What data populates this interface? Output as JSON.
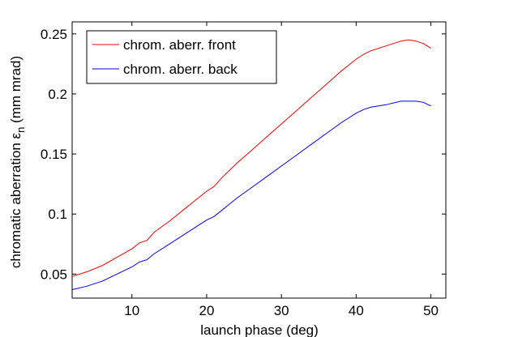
{
  "chart_data": {
    "type": "line",
    "title": "",
    "xlabel": "launch phase (deg)",
    "ylabel_main": "chromatic aberration ε",
    "ylabel_sub": "n",
    "ylabel_unit": "(mm mrad)",
    "xlim": [
      2,
      52
    ],
    "ylim": [
      0.03,
      0.26
    ],
    "xticks": [
      10,
      20,
      30,
      40,
      50
    ],
    "xtick_labels": [
      "10",
      "20",
      "30",
      "40",
      "50"
    ],
    "yticks": [
      0.05,
      0.1,
      0.15,
      0.2,
      0.25
    ],
    "ytick_labels": [
      "0.05",
      "0.1",
      "0.15",
      "0.2",
      "0.25"
    ],
    "grid": false,
    "legend_position": "top-left",
    "series": [
      {
        "name": "chrom. aberr. front",
        "color": "#ff0000",
        "x": [
          2,
          4,
          6,
          8,
          10,
          11,
          12,
          13,
          15,
          17,
          19,
          20,
          21,
          22,
          24,
          26,
          28,
          30,
          32,
          34,
          36,
          38,
          40,
          41,
          42,
          44,
          46,
          47,
          48,
          49,
          50
        ],
        "y": [
          0.048,
          0.052,
          0.057,
          0.064,
          0.071,
          0.076,
          0.078,
          0.085,
          0.094,
          0.104,
          0.114,
          0.119,
          0.123,
          0.13,
          0.142,
          0.153,
          0.164,
          0.175,
          0.186,
          0.197,
          0.208,
          0.219,
          0.229,
          0.233,
          0.236,
          0.24,
          0.244,
          0.245,
          0.244,
          0.242,
          0.238
        ]
      },
      {
        "name": "chrom. aberr. back",
        "color": "#0000ff",
        "x": [
          2,
          4,
          6,
          8,
          10,
          11,
          12,
          13,
          15,
          17,
          19,
          20,
          21,
          22,
          24,
          26,
          28,
          30,
          32,
          34,
          36,
          38,
          40,
          41,
          42,
          44,
          46,
          47,
          48,
          49,
          50
        ],
        "y": [
          0.037,
          0.04,
          0.044,
          0.05,
          0.056,
          0.06,
          0.062,
          0.067,
          0.075,
          0.083,
          0.091,
          0.095,
          0.098,
          0.103,
          0.113,
          0.122,
          0.131,
          0.14,
          0.149,
          0.158,
          0.167,
          0.176,
          0.184,
          0.187,
          0.189,
          0.191,
          0.194,
          0.194,
          0.194,
          0.193,
          0.19
        ]
      }
    ]
  }
}
